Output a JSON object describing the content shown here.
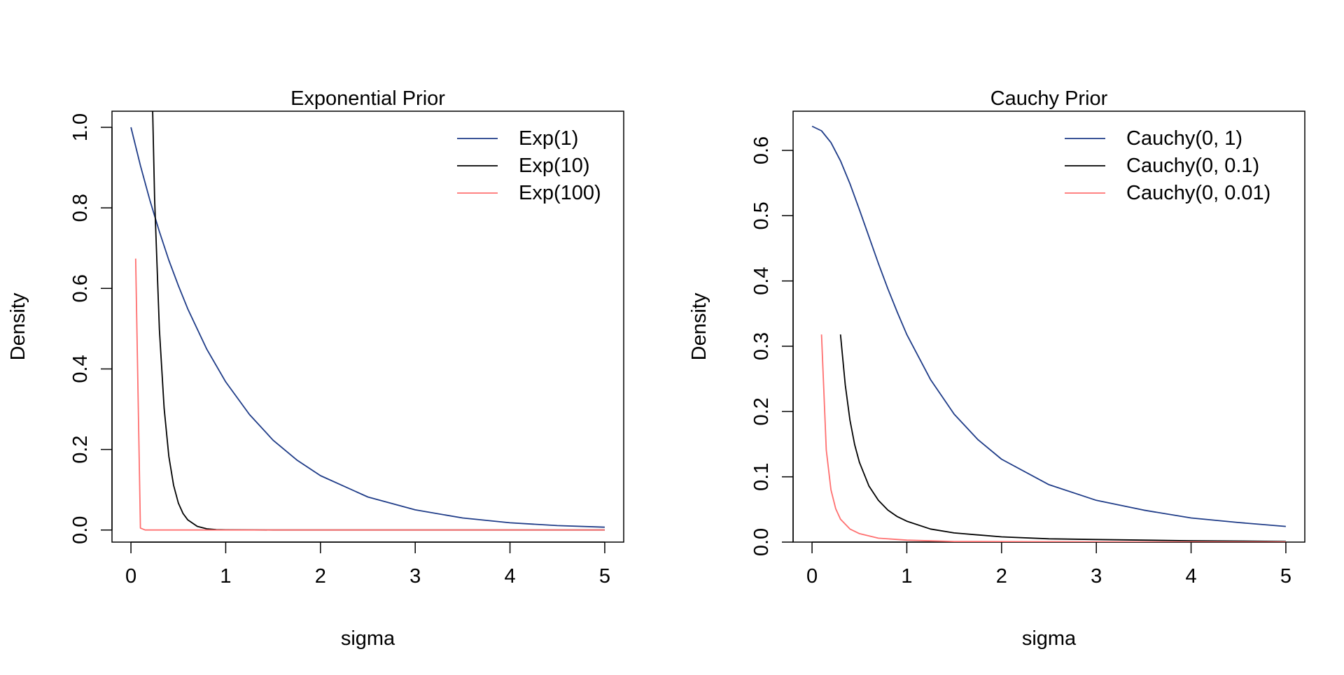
{
  "chart_data": [
    {
      "type": "line",
      "title": "Exponential Prior",
      "xlabel": "sigma",
      "ylabel": "Density",
      "xlim": [
        -0.2,
        5.2
      ],
      "ylim": [
        -0.03,
        1.04
      ],
      "xticks": [
        "0",
        "1",
        "2",
        "3",
        "4",
        "5"
      ],
      "yticks": [
        "0.0",
        "0.2",
        "0.4",
        "0.6",
        "0.8",
        "1.0"
      ],
      "grid": false,
      "legend": "top-right",
      "series": [
        {
          "name": "Exp(1)",
          "color": "#1f3c88",
          "x": [
            0,
            0.1,
            0.2,
            0.3,
            0.4,
            0.5,
            0.6,
            0.8,
            1.0,
            1.25,
            1.5,
            1.75,
            2.0,
            2.5,
            3.0,
            3.5,
            4.0,
            4.5,
            5.0
          ],
          "y": [
            1.0,
            0.905,
            0.819,
            0.741,
            0.67,
            0.607,
            0.549,
            0.449,
            0.368,
            0.287,
            0.223,
            0.174,
            0.135,
            0.082,
            0.05,
            0.03,
            0.018,
            0.011,
            0.007
          ]
        },
        {
          "name": "Exp(10)",
          "color": "#000000",
          "x": [
            0.2,
            0.25,
            0.3,
            0.35,
            0.4,
            0.45,
            0.5,
            0.55,
            0.6,
            0.7,
            0.8,
            0.9,
            1.0,
            1.5,
            2.0,
            3.0,
            4.0,
            5.0
          ],
          "y": [
            1.353,
            0.821,
            0.498,
            0.302,
            0.183,
            0.111,
            0.067,
            0.041,
            0.025,
            0.009,
            0.003,
            0.001,
            0.0005,
            0.0,
            0.0,
            0.0,
            0.0,
            0.0
          ]
        },
        {
          "name": "Exp(100)",
          "color": "#ff7070",
          "x": [
            0.05,
            0.1,
            0.15,
            0.2,
            0.5,
            1.0,
            2.0,
            3.0,
            4.0,
            5.0
          ],
          "y": [
            0.674,
            0.005,
            0.0,
            0.0,
            0.0,
            0.0,
            0.0,
            0.0,
            0.0,
            0.0
          ]
        }
      ]
    },
    {
      "type": "line",
      "title": "Cauchy Prior",
      "xlabel": "sigma",
      "ylabel": "Density",
      "xlim": [
        -0.2,
        5.2
      ],
      "ylim": [
        0.0,
        0.66
      ],
      "xticks": [
        "0",
        "1",
        "2",
        "3",
        "4",
        "5"
      ],
      "yticks": [
        "0.0",
        "0.1",
        "0.2",
        "0.3",
        "0.4",
        "0.5",
        "0.6"
      ],
      "grid": false,
      "legend": "top-right",
      "series": [
        {
          "name": "Cauchy(0, 1)",
          "color": "#1f3c88",
          "x": [
            0,
            0.1,
            0.2,
            0.3,
            0.4,
            0.5,
            0.6,
            0.7,
            0.8,
            0.9,
            1.0,
            1.25,
            1.5,
            1.75,
            2.0,
            2.5,
            3.0,
            3.5,
            4.0,
            4.5,
            5.0
          ],
          "y": [
            0.637,
            0.63,
            0.612,
            0.584,
            0.549,
            0.509,
            0.468,
            0.427,
            0.388,
            0.352,
            0.318,
            0.249,
            0.196,
            0.157,
            0.127,
            0.088,
            0.064,
            0.049,
            0.037,
            0.03,
            0.024
          ]
        },
        {
          "name": "Cauchy(0, 0.1)",
          "color": "#000000",
          "x": [
            0.3,
            0.35,
            0.4,
            0.45,
            0.5,
            0.6,
            0.7,
            0.8,
            0.9,
            1.0,
            1.25,
            1.5,
            2.0,
            2.5,
            3.0,
            4.0,
            5.0
          ],
          "y": [
            0.318,
            0.241,
            0.187,
            0.149,
            0.122,
            0.086,
            0.064,
            0.049,
            0.039,
            0.032,
            0.02,
            0.014,
            0.008,
            0.005,
            0.004,
            0.002,
            0.001
          ]
        },
        {
          "name": "Cauchy(0, 0.01)",
          "color": "#ff7070",
          "x": [
            0.1,
            0.15,
            0.2,
            0.25,
            0.3,
            0.4,
            0.5,
            0.7,
            1.0,
            1.5,
            2.0,
            3.0,
            4.0,
            5.0
          ],
          "y": [
            0.318,
            0.141,
            0.08,
            0.051,
            0.035,
            0.02,
            0.013,
            0.006,
            0.003,
            0.001,
            0.0008,
            0.0004,
            0.0002,
            0.0001
          ]
        }
      ]
    }
  ]
}
